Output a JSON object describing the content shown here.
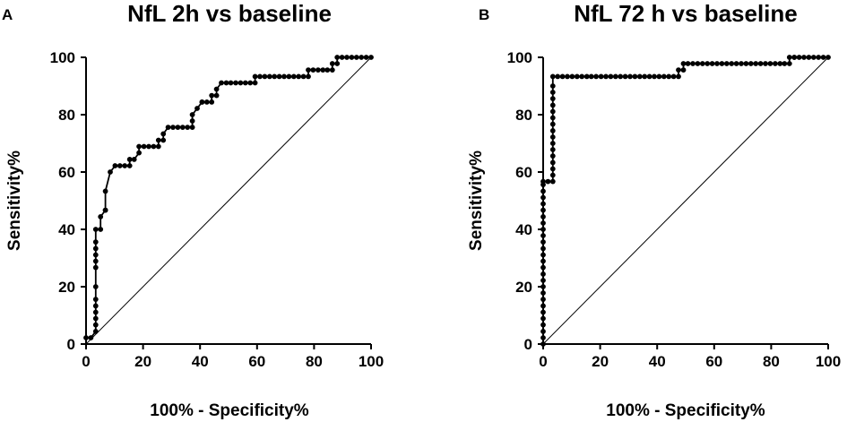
{
  "chart_data": [
    {
      "panel": "A",
      "type": "line",
      "title": "NfL 2h vs baseline",
      "xlabel": "100% - Specificity%",
      "ylabel": "Sensitivity%",
      "xlim": [
        0,
        100
      ],
      "ylim": [
        0,
        100
      ],
      "xticks": [
        0,
        20,
        40,
        60,
        80,
        100
      ],
      "yticks": [
        0,
        20,
        40,
        60,
        80,
        100
      ],
      "series": [
        {
          "name": "ROC",
          "markers": true,
          "x": [
            0,
            1.7,
            3.4,
            3.4,
            3.4,
            3.4,
            3.4,
            3.4,
            3.4,
            3.4,
            3.4,
            3.4,
            3.4,
            3.4,
            3.4,
            5.1,
            5.1,
            6.8,
            6.8,
            6.8,
            8.5,
            10.2,
            11.9,
            13.6,
            15.3,
            15.3,
            16.9,
            18.6,
            18.6,
            20.3,
            22,
            23.7,
            25.4,
            25.4,
            27.1,
            27.1,
            28.8,
            30.5,
            32.2,
            33.9,
            35.6,
            37.3,
            37.3,
            37.3,
            39,
            40.7,
            40.7,
            42.4,
            44.1,
            44.1,
            45.8,
            45.8,
            47.5,
            49.2,
            50.8,
            52.5,
            54.2,
            55.9,
            57.6,
            59.3,
            59.3,
            61,
            62.7,
            64.4,
            66.1,
            67.8,
            69.5,
            71.2,
            72.9,
            74.6,
            76.3,
            78,
            78,
            79.7,
            81.4,
            83.1,
            84.7,
            86.4,
            86.4,
            88.1,
            88.1,
            89.8,
            91.5,
            93.2,
            94.9,
            96.6,
            98.3,
            100
          ],
          "y": [
            2.2,
            2.2,
            4.4,
            6.7,
            8.9,
            11.1,
            13.3,
            15.6,
            20,
            26.7,
            28.9,
            31.1,
            33.3,
            35.6,
            40,
            40,
            44.4,
            46.7,
            46.7,
            53.3,
            60,
            62.2,
            62.2,
            62.2,
            62.2,
            64.4,
            64.4,
            66.7,
            68.9,
            68.9,
            68.9,
            68.9,
            68.9,
            71.1,
            71.1,
            73.3,
            75.6,
            75.6,
            75.6,
            75.6,
            75.6,
            75.6,
            77.8,
            80,
            82.2,
            84.4,
            84.4,
            84.4,
            84.4,
            86.7,
            86.7,
            88.9,
            91.1,
            91.1,
            91.1,
            91.1,
            91.1,
            91.1,
            91.1,
            91.1,
            93.3,
            93.3,
            93.3,
            93.3,
            93.3,
            93.3,
            93.3,
            93.3,
            93.3,
            93.3,
            93.3,
            93.3,
            95.6,
            95.6,
            95.6,
            95.6,
            95.6,
            95.6,
            97.8,
            97.8,
            100,
            100,
            100,
            100,
            100,
            100,
            100,
            100
          ]
        },
        {
          "name": "Reference",
          "markers": false,
          "x": [
            0,
            100
          ],
          "y": [
            0,
            100
          ]
        }
      ]
    },
    {
      "panel": "B",
      "type": "line",
      "title": "NfL 72 h vs baseline",
      "xlabel": "100% - Specificity%",
      "ylabel": "Sensitivity%",
      "xlim": [
        0,
        100
      ],
      "ylim": [
        0,
        100
      ],
      "xticks": [
        0,
        20,
        40,
        60,
        80,
        100
      ],
      "yticks": [
        0,
        20,
        40,
        60,
        80,
        100
      ],
      "series": [
        {
          "name": "ROC",
          "markers": true,
          "x": [
            0,
            0,
            0,
            0,
            0,
            0,
            0,
            0,
            0,
            0,
            0,
            0,
            0,
            0,
            0,
            0,
            0,
            0,
            0,
            0,
            0,
            0,
            0,
            0,
            0,
            0,
            0,
            1.7,
            3.4,
            3.4,
            3.4,
            3.4,
            3.4,
            3.4,
            3.4,
            3.4,
            3.4,
            3.4,
            3.4,
            3.4,
            3.4,
            3.4,
            3.4,
            3.4,
            3.4,
            5.1,
            6.8,
            8.5,
            10.2,
            11.9,
            13.6,
            15.3,
            16.9,
            18.6,
            20.3,
            22,
            23.7,
            25.4,
            27.1,
            28.8,
            30.5,
            32.2,
            33.9,
            35.6,
            37.3,
            39,
            40.7,
            42.4,
            44.1,
            45.8,
            47.5,
            47.5,
            49.2,
            49.2,
            50.8,
            52.5,
            54.2,
            55.9,
            57.6,
            59.3,
            61,
            62.7,
            64.4,
            66.1,
            67.8,
            69.5,
            71.2,
            72.9,
            74.6,
            76.3,
            78,
            79.7,
            81.4,
            83.1,
            84.7,
            86.4,
            86.4,
            88.1,
            88.1,
            89.8,
            91.5,
            93.2,
            94.9,
            96.6,
            98.3,
            100
          ],
          "y": [
            0,
            2.2,
            4.4,
            6.7,
            8.9,
            11.1,
            13.3,
            15.6,
            17.8,
            20,
            22.2,
            24.4,
            26.7,
            28.9,
            31.1,
            33.3,
            35.6,
            37.8,
            40,
            42.2,
            44.4,
            46.7,
            48.9,
            51.1,
            53.3,
            55.6,
            56.7,
            56.7,
            56.7,
            58.9,
            61.1,
            63.3,
            65.6,
            67.8,
            70,
            72.2,
            74.4,
            76.7,
            78.9,
            81.1,
            83.3,
            85.6,
            87.8,
            90,
            93.3,
            93.3,
            93.3,
            93.3,
            93.3,
            93.3,
            93.3,
            93.3,
            93.3,
            93.3,
            93.3,
            93.3,
            93.3,
            93.3,
            93.3,
            93.3,
            93.3,
            93.3,
            93.3,
            93.3,
            93.3,
            93.3,
            93.3,
            93.3,
            93.3,
            93.3,
            93.3,
            95.6,
            95.6,
            97.8,
            97.8,
            97.8,
            97.8,
            97.8,
            97.8,
            97.8,
            97.8,
            97.8,
            97.8,
            97.8,
            97.8,
            97.8,
            97.8,
            97.8,
            97.8,
            97.8,
            97.8,
            97.8,
            97.8,
            97.8,
            97.8,
            97.8,
            100,
            100,
            100,
            100,
            100,
            100,
            100,
            100,
            100,
            100
          ]
        },
        {
          "name": "Reference",
          "markers": false,
          "x": [
            0,
            100
          ],
          "y": [
            0,
            100
          ]
        }
      ]
    }
  ]
}
